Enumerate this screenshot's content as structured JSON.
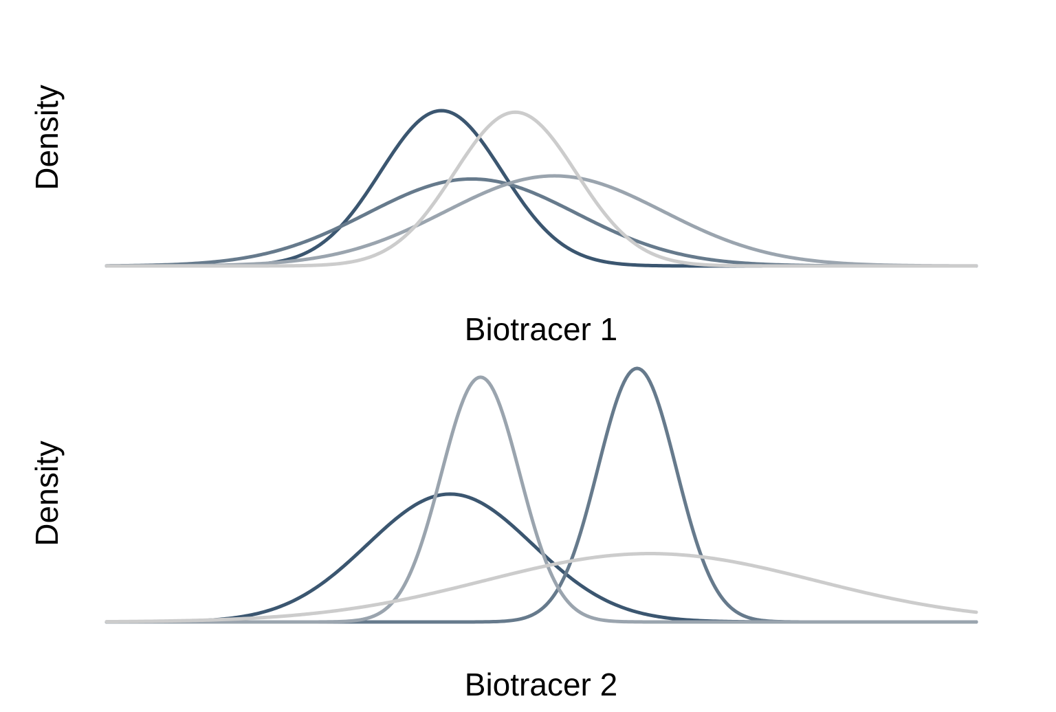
{
  "chart_data": [
    {
      "type": "line",
      "title": "",
      "xlabel": "Biotracer 1",
      "ylabel": "Density",
      "xlim": [
        0,
        100
      ],
      "ylim": [
        0,
        1.3
      ],
      "grid": false,
      "legend": "none",
      "ticks_shown": false,
      "series": [
        {
          "mean": 38.5,
          "sd": 7.0,
          "peak": 1.0,
          "color": "#3b5670"
        },
        {
          "mean": 42.0,
          "sd": 12.0,
          "peak": 0.56,
          "color": "#667a8c"
        },
        {
          "mean": 51.5,
          "sd": 12.5,
          "peak": 0.58,
          "color": "#9aa4ae"
        },
        {
          "mean": 47.0,
          "sd": 7.0,
          "peak": 0.99,
          "color": "#cccccc"
        }
      ]
    },
    {
      "type": "line",
      "title": "",
      "xlabel": "Biotracer 2",
      "ylabel": "Density",
      "xlim": [
        0,
        100
      ],
      "ylim": [
        0,
        1.7
      ],
      "grid": false,
      "legend": "none",
      "ticks_shown": false,
      "series": [
        {
          "mean": 39.5,
          "sd": 9.5,
          "peak": 0.58,
          "color": "#3b5670"
        },
        {
          "mean": 61.0,
          "sd": 4.5,
          "peak": 1.15,
          "color": "#667a8c"
        },
        {
          "mean": 43.0,
          "sd": 4.5,
          "peak": 1.11,
          "color": "#9aa4ae"
        },
        {
          "mean": 62.5,
          "sd": 19.0,
          "peak": 0.31,
          "color": "#cccccc"
        }
      ]
    }
  ]
}
